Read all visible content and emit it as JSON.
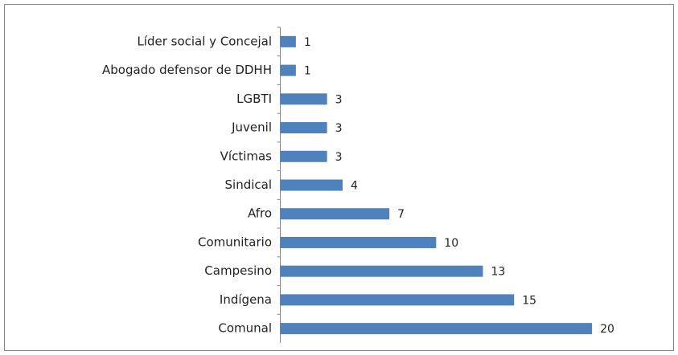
{
  "chart_data": {
    "type": "bar",
    "orientation": "horizontal",
    "categories": [
      "Líder social y Concejal",
      "Abogado defensor de DDHH",
      "LGBTI",
      "Juvenil",
      "Víctimas",
      "Sindical",
      "Afro",
      "Comunitario",
      "Campesino",
      "Indígena",
      "Comunal"
    ],
    "values": [
      1,
      1,
      3,
      3,
      3,
      4,
      7,
      10,
      13,
      15,
      20
    ],
    "color": "#4f81bd",
    "xlim": [
      0,
      25
    ]
  }
}
